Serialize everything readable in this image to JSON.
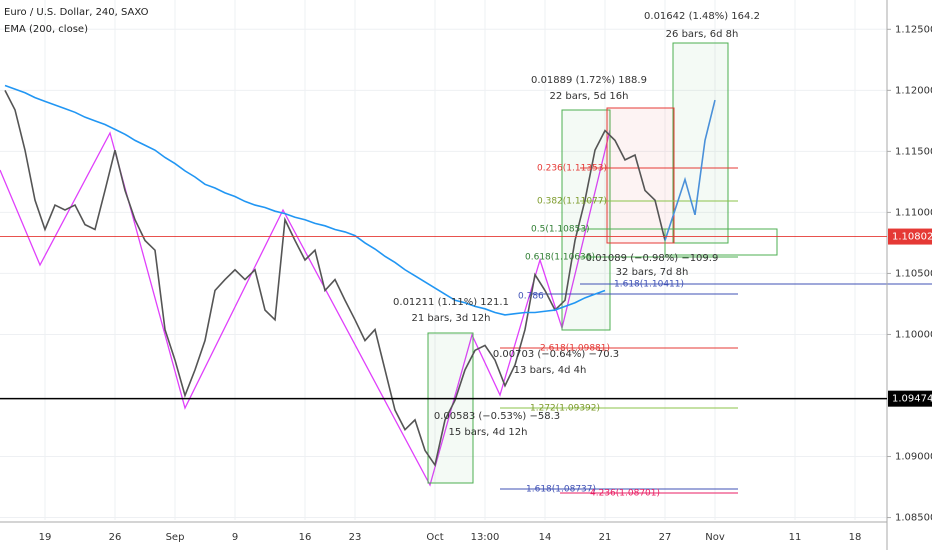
{
  "chart_data": {
    "type": "line",
    "title": "Euro / U.S. Dollar, 240, SAXO",
    "categories": [
      null,
      null,
      null,
      null,
      "19",
      null,
      null,
      null,
      null,
      null,
      null,
      "26",
      null,
      null,
      null,
      null,
      null,
      "Sep",
      null,
      null,
      null,
      null,
      null,
      "9",
      null,
      null,
      null,
      null,
      null,
      null,
      "16",
      null,
      null,
      null,
      null,
      "23",
      null,
      null,
      null,
      null,
      null,
      null,
      null,
      "Oct",
      null,
      null,
      null,
      null,
      "13:00",
      null,
      null,
      null,
      null,
      null,
      "14",
      null,
      null,
      null,
      null,
      null,
      "21",
      null,
      null,
      null,
      null,
      null,
      "27",
      null,
      null,
      null,
      null,
      "Nov",
      null,
      null,
      null,
      null,
      null,
      null,
      null,
      "11",
      null,
      null,
      null,
      null,
      null,
      "18",
      null,
      null,
      null
    ],
    "series": [
      {
        "name": "Euro / U.S. Dollar, 240, SAXO",
        "color": "#555555",
        "values": [
          1.12,
          1.1184,
          1.1151,
          1.111,
          1.1086,
          1.1106,
          1.1102,
          1.1106,
          1.109,
          1.1086,
          1.1118,
          1.1151,
          1.1118,
          1.1094,
          1.1077,
          1.1069,
          1.1004,
          1.0979,
          1.095,
          1.0971,
          1.0995,
          1.1036,
          1.1045,
          1.1053,
          1.1045,
          1.1053,
          1.102,
          1.1012,
          1.1094,
          1.1077,
          1.1061,
          1.1069,
          1.1036,
          1.1045,
          1.1028,
          1.1012,
          1.0995,
          1.1004,
          1.0971,
          1.0938,
          1.0922,
          1.093,
          1.0905,
          1.0893,
          1.093,
          1.0946,
          1.0971,
          1.0987,
          1.0991,
          1.0979,
          1.0958,
          1.0975,
          1.1004,
          1.1049,
          1.1036,
          1.102,
          1.1028,
          1.1077,
          1.111,
          1.1151,
          1.1167,
          1.1159,
          1.1143,
          1.1147,
          1.1118,
          1.111,
          1.1077,
          null,
          null,
          null,
          null,
          null,
          null,
          null,
          null,
          null,
          null,
          null,
          null,
          null,
          null,
          null,
          null,
          null,
          null,
          null,
          null,
          null,
          null
        ]
      },
      {
        "name": "EMA (200, close)",
        "color": "#2196f3",
        "values": [
          1.1204,
          1.1201,
          1.1198,
          1.1194,
          1.1191,
          1.1188,
          1.1185,
          1.1182,
          1.1178,
          1.1175,
          1.1172,
          1.1168,
          1.1164,
          1.1159,
          1.1155,
          1.1151,
          1.1145,
          1.114,
          1.1134,
          1.1129,
          1.1123,
          1.112,
          1.1116,
          1.1113,
          1.1109,
          1.1106,
          1.1104,
          1.1101,
          1.1099,
          1.1096,
          1.1094,
          1.1091,
          1.1089,
          1.1086,
          1.1084,
          1.1081,
          1.1075,
          1.107,
          1.1064,
          1.1059,
          1.1053,
          1.1048,
          1.1043,
          1.1038,
          1.1033,
          1.1028,
          1.1026,
          1.1023,
          1.1021,
          1.1018,
          1.1016,
          1.1017,
          1.1018,
          1.1018,
          1.1019,
          1.102,
          1.1023,
          1.1026,
          1.103,
          1.1033,
          1.1036,
          null,
          null,
          null,
          null,
          null,
          null,
          null,
          null,
          null,
          null,
          null,
          null,
          null,
          null,
          null,
          null,
          null,
          null,
          null,
          null,
          null,
          null,
          null,
          null,
          null,
          null,
          null,
          null
        ]
      },
      {
        "color": "#4a90d9",
        "values": [
          null,
          null,
          null,
          null,
          null,
          null,
          null,
          null,
          null,
          null,
          null,
          null,
          null,
          null,
          null,
          null,
          null,
          null,
          null,
          null,
          null,
          null,
          null,
          null,
          null,
          null,
          null,
          null,
          null,
          null,
          null,
          null,
          null,
          null,
          null,
          null,
          null,
          null,
          null,
          null,
          null,
          null,
          null,
          null,
          null,
          null,
          null,
          null,
          null,
          null,
          null,
          null,
          null,
          null,
          null,
          null,
          null,
          null,
          null,
          null,
          null,
          null,
          null,
          null,
          null,
          null,
          1.1077,
          1.1102,
          1.1127,
          1.1098,
          1.1159,
          1.1192,
          null,
          null,
          null,
          null,
          null,
          null,
          null,
          null,
          null,
          null,
          null,
          null,
          null,
          null,
          null,
          null,
          null
        ]
      }
    ],
    "ylim": [
      1.0848,
      1.1274
    ],
    "yticks": [
      {
        "value": 1.085,
        "label": "1.08500"
      },
      {
        "value": 1.09,
        "label": "1.09000"
      },
      {
        "value": 1.1,
        "label": "1.10000"
      },
      {
        "value": 1.105,
        "label": "1.10500"
      },
      {
        "value": 1.11,
        "label": "1.11000"
      },
      {
        "value": 1.115,
        "label": "1.11500"
      },
      {
        "value": 1.12,
        "label": "1.12000"
      },
      {
        "value": 1.125,
        "label": "1.12500"
      }
    ],
    "hlines": [
      {
        "value": 1.09474,
        "label": "1.09474",
        "color": "#000000"
      },
      {
        "value": 1.10802,
        "label": "1.10802",
        "color": "#e53935"
      }
    ],
    "grid": true,
    "annotations": [
      "0.01642 (1.48%) 164.2",
      "26 bars, 6d 8h",
      "0.01889 (1.72%) 188.9",
      "22 bars, 5d 16h",
      "0.01211 (1.11%) 121.1",
      "21 bars, 3d 12h",
      "0.00703 (−0.64%) −70.3",
      "13 bars, 4d 4h",
      "0.00583 (−0.53%) −58.3",
      "15 bars, 4d 12h",
      "0.01089 (−0.98%) −109.9",
      "32 bars, 7d 8h",
      "0.236(1.11353)",
      "0.382(1.11077)",
      "0.5(1.10853)",
      "0.618(1.10636)",
      "0.786",
      "1.618(1.10411)",
      "2.618(1.09881)",
      "1.272(1.09392)",
      "1.618(1.08737)",
      "4.236(1.08701)"
    ]
  }
}
